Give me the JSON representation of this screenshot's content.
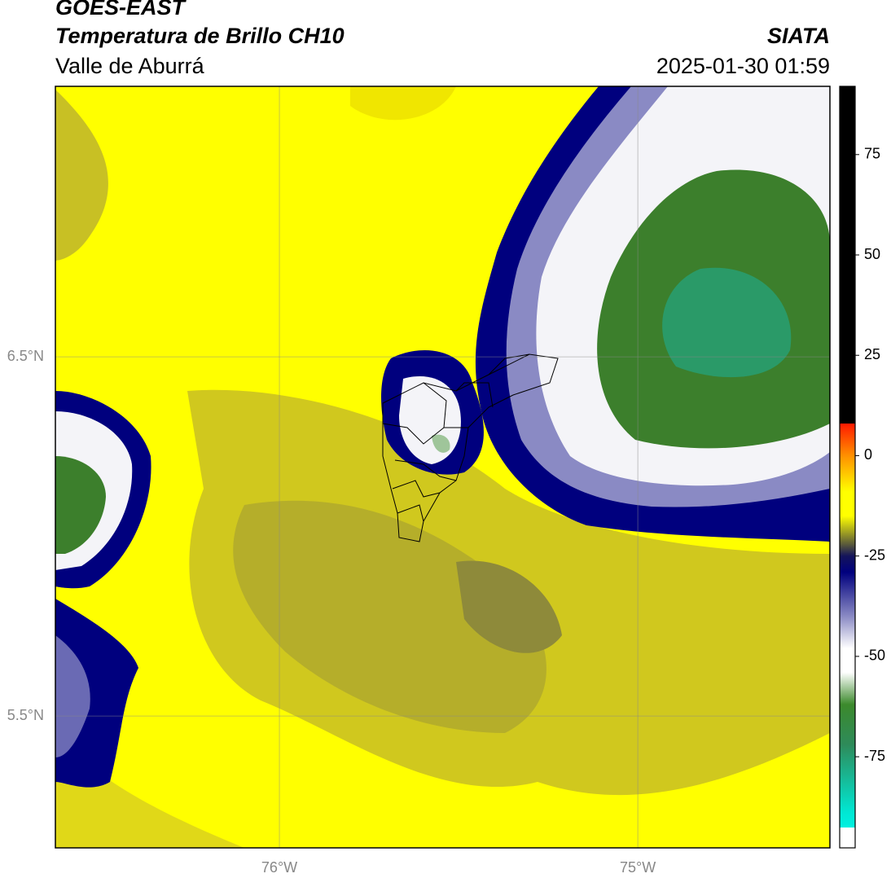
{
  "header": {
    "satellite": "GOES-EAST",
    "product": "Temperatura de Brillo CH10",
    "agency": "SIATA",
    "region": "Valle de Aburrá",
    "datetime": "2025-01-30 01:59"
  },
  "map": {
    "lonlim": [
      -76.625,
      -74.464
    ],
    "latlim": [
      5.133,
      7.253
    ],
    "lonticks": [
      {
        "value": -76,
        "label": "76°W"
      },
      {
        "value": -75,
        "label": "75°W"
      }
    ],
    "latticks": [
      {
        "value": 6.5,
        "label": "6.5°N"
      },
      {
        "value": 5.5,
        "label": "5.5°N"
      }
    ],
    "grid": true
  },
  "colorbar": {
    "lim": [
      -97.7,
      92
    ],
    "ticks": [
      75,
      50,
      25,
      0,
      -25,
      -50,
      -75
    ],
    "stops": [
      {
        "value": 92,
        "color": "#000000"
      },
      {
        "value": 8,
        "color": "#000000"
      },
      {
        "value": 8,
        "color": "#ff1a00"
      },
      {
        "value": 0,
        "color": "#ff9000"
      },
      {
        "value": -9,
        "color": "#ffff00"
      },
      {
        "value": -15,
        "color": "#ffff00"
      },
      {
        "value": -22,
        "color": "#5c5c3a"
      },
      {
        "value": -25,
        "color": "#14145a"
      },
      {
        "value": -29,
        "color": "#00007e"
      },
      {
        "value": -40,
        "color": "#8a8ac4"
      },
      {
        "value": -48,
        "color": "#ffffff"
      },
      {
        "value": -54,
        "color": "#ffffff"
      },
      {
        "value": -62,
        "color": "#3c8a2c"
      },
      {
        "value": -72,
        "color": "#2e8b5a"
      },
      {
        "value": -89,
        "color": "#00e8d4"
      },
      {
        "value": -92.6,
        "color": "#00f0e0"
      },
      {
        "value": -92.6,
        "color": "#ffffff"
      },
      {
        "value": -97.7,
        "color": "#ffffff"
      }
    ]
  }
}
